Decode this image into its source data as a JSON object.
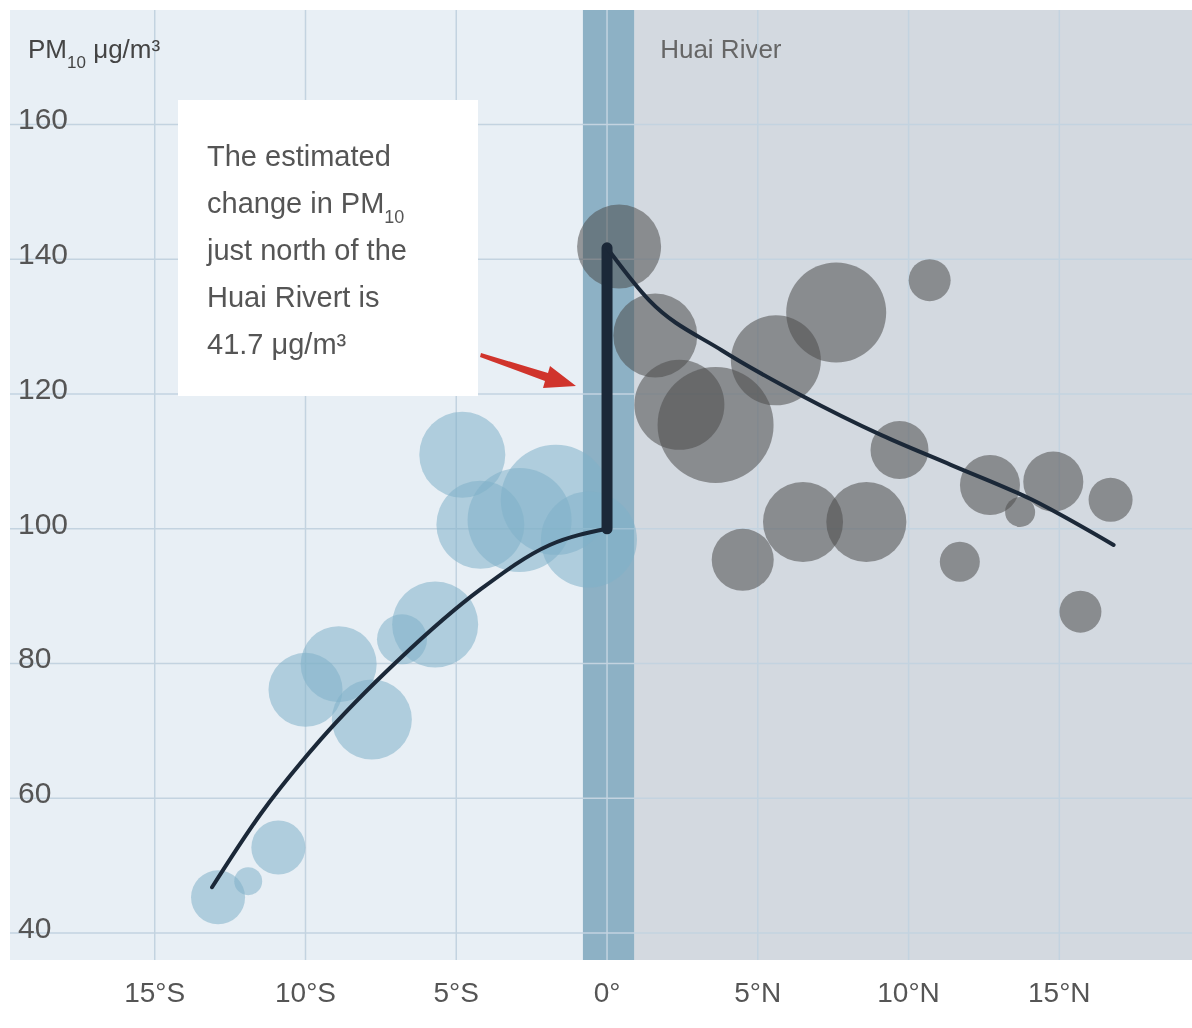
{
  "chart_data": {
    "type": "bubble",
    "ylabel": "PM$_{10}$ μg/m³",
    "xlim": [
      -19.8,
      19.4
    ],
    "ylim": [
      36,
      177
    ],
    "xticks": [
      {
        "value": -15,
        "label": "15°S"
      },
      {
        "value": -10,
        "label": "10°S"
      },
      {
        "value": -5,
        "label": "5°S"
      },
      {
        "value": 0,
        "label": "0°"
      },
      {
        "value": 5,
        "label": "5°N"
      },
      {
        "value": 10,
        "label": "10°N"
      },
      {
        "value": 15,
        "label": "15°N"
      }
    ],
    "yticks": [
      40,
      60,
      80,
      100,
      120,
      140,
      160
    ],
    "grid": true,
    "bands": [
      {
        "axis": "x",
        "from": 0.9,
        "to": 19.4,
        "label": "Huai River",
        "color": "#d3d9e0"
      },
      {
        "axis": "x",
        "from": -0.8,
        "to": 0.9,
        "label": null,
        "color": "#8db1c5"
      }
    ],
    "annotations": [
      "The estimated change in PM$_{10}$ just north of the Huai Rivert is 41.7 μg/m³"
    ],
    "series": [
      {
        "color": "#7fb0c8",
        "x": [
          -12.9,
          -11.9,
          -10.9,
          -10.0,
          -8.9,
          -7.8,
          -6.8,
          -5.7,
          -4.8,
          -4.2,
          -2.9,
          -1.7,
          -0.6
        ],
        "values": [
          45.3,
          47.7,
          52.7,
          76.1,
          79.9,
          71.7,
          83.6,
          85.8,
          111.0,
          100.6,
          101.3,
          104.3,
          98.4
        ],
        "sizes": [
          0.217,
          0.058,
          0.217,
          0.407,
          0.429,
          0.476,
          0.186,
          0.55,
          0.55,
          0.575,
          0.804,
          0.899,
          0.685
        ]
      },
      {
        "color": "#4d4d4d",
        "x": [
          0.4,
          1.6,
          2.4,
          3.6,
          5.6,
          7.6,
          10.7,
          9.7,
          6.5,
          8.6,
          4.5,
          11.7,
          12.7,
          13.7,
          14.8,
          16.7,
          15.7
        ],
        "values": [
          141.9,
          128.7,
          118.4,
          115.4,
          125.0,
          132.1,
          136.9,
          111.7,
          101.0,
          101.0,
          95.4,
          95.1,
          106.5,
          102.5,
          107.0,
          104.3,
          87.7
        ],
        "sizes": [
          0.524,
          0.524,
          0.602,
          1,
          0.602,
          0.743,
          0.131,
          0.25,
          0.476,
          0.476,
          0.286,
          0.119,
          0.268,
          0.067,
          0.268,
          0.144,
          0.131
        ]
      },
      {
        "type": "line",
        "color": "#1b2838",
        "x": [
          -13.1,
          -11.5,
          -9.5,
          -6.9,
          -4.2,
          -1.9,
          0
        ],
        "values": [
          46.8,
          57.6,
          68.7,
          80.6,
          91.0,
          97.6,
          100
        ]
      },
      {
        "type": "line",
        "color": "#1b2838",
        "x": [
          0,
          0
        ],
        "values": [
          100,
          141.7
        ]
      },
      {
        "type": "line",
        "color": "#1b2838",
        "x": [
          0,
          1.4,
          3.8,
          6.4,
          9.1,
          11.4,
          14.1,
          16.8
        ],
        "values": [
          141.7,
          133.9,
          126.5,
          119.9,
          113.9,
          109.5,
          104.3,
          97.6
        ]
      }
    ]
  }
}
